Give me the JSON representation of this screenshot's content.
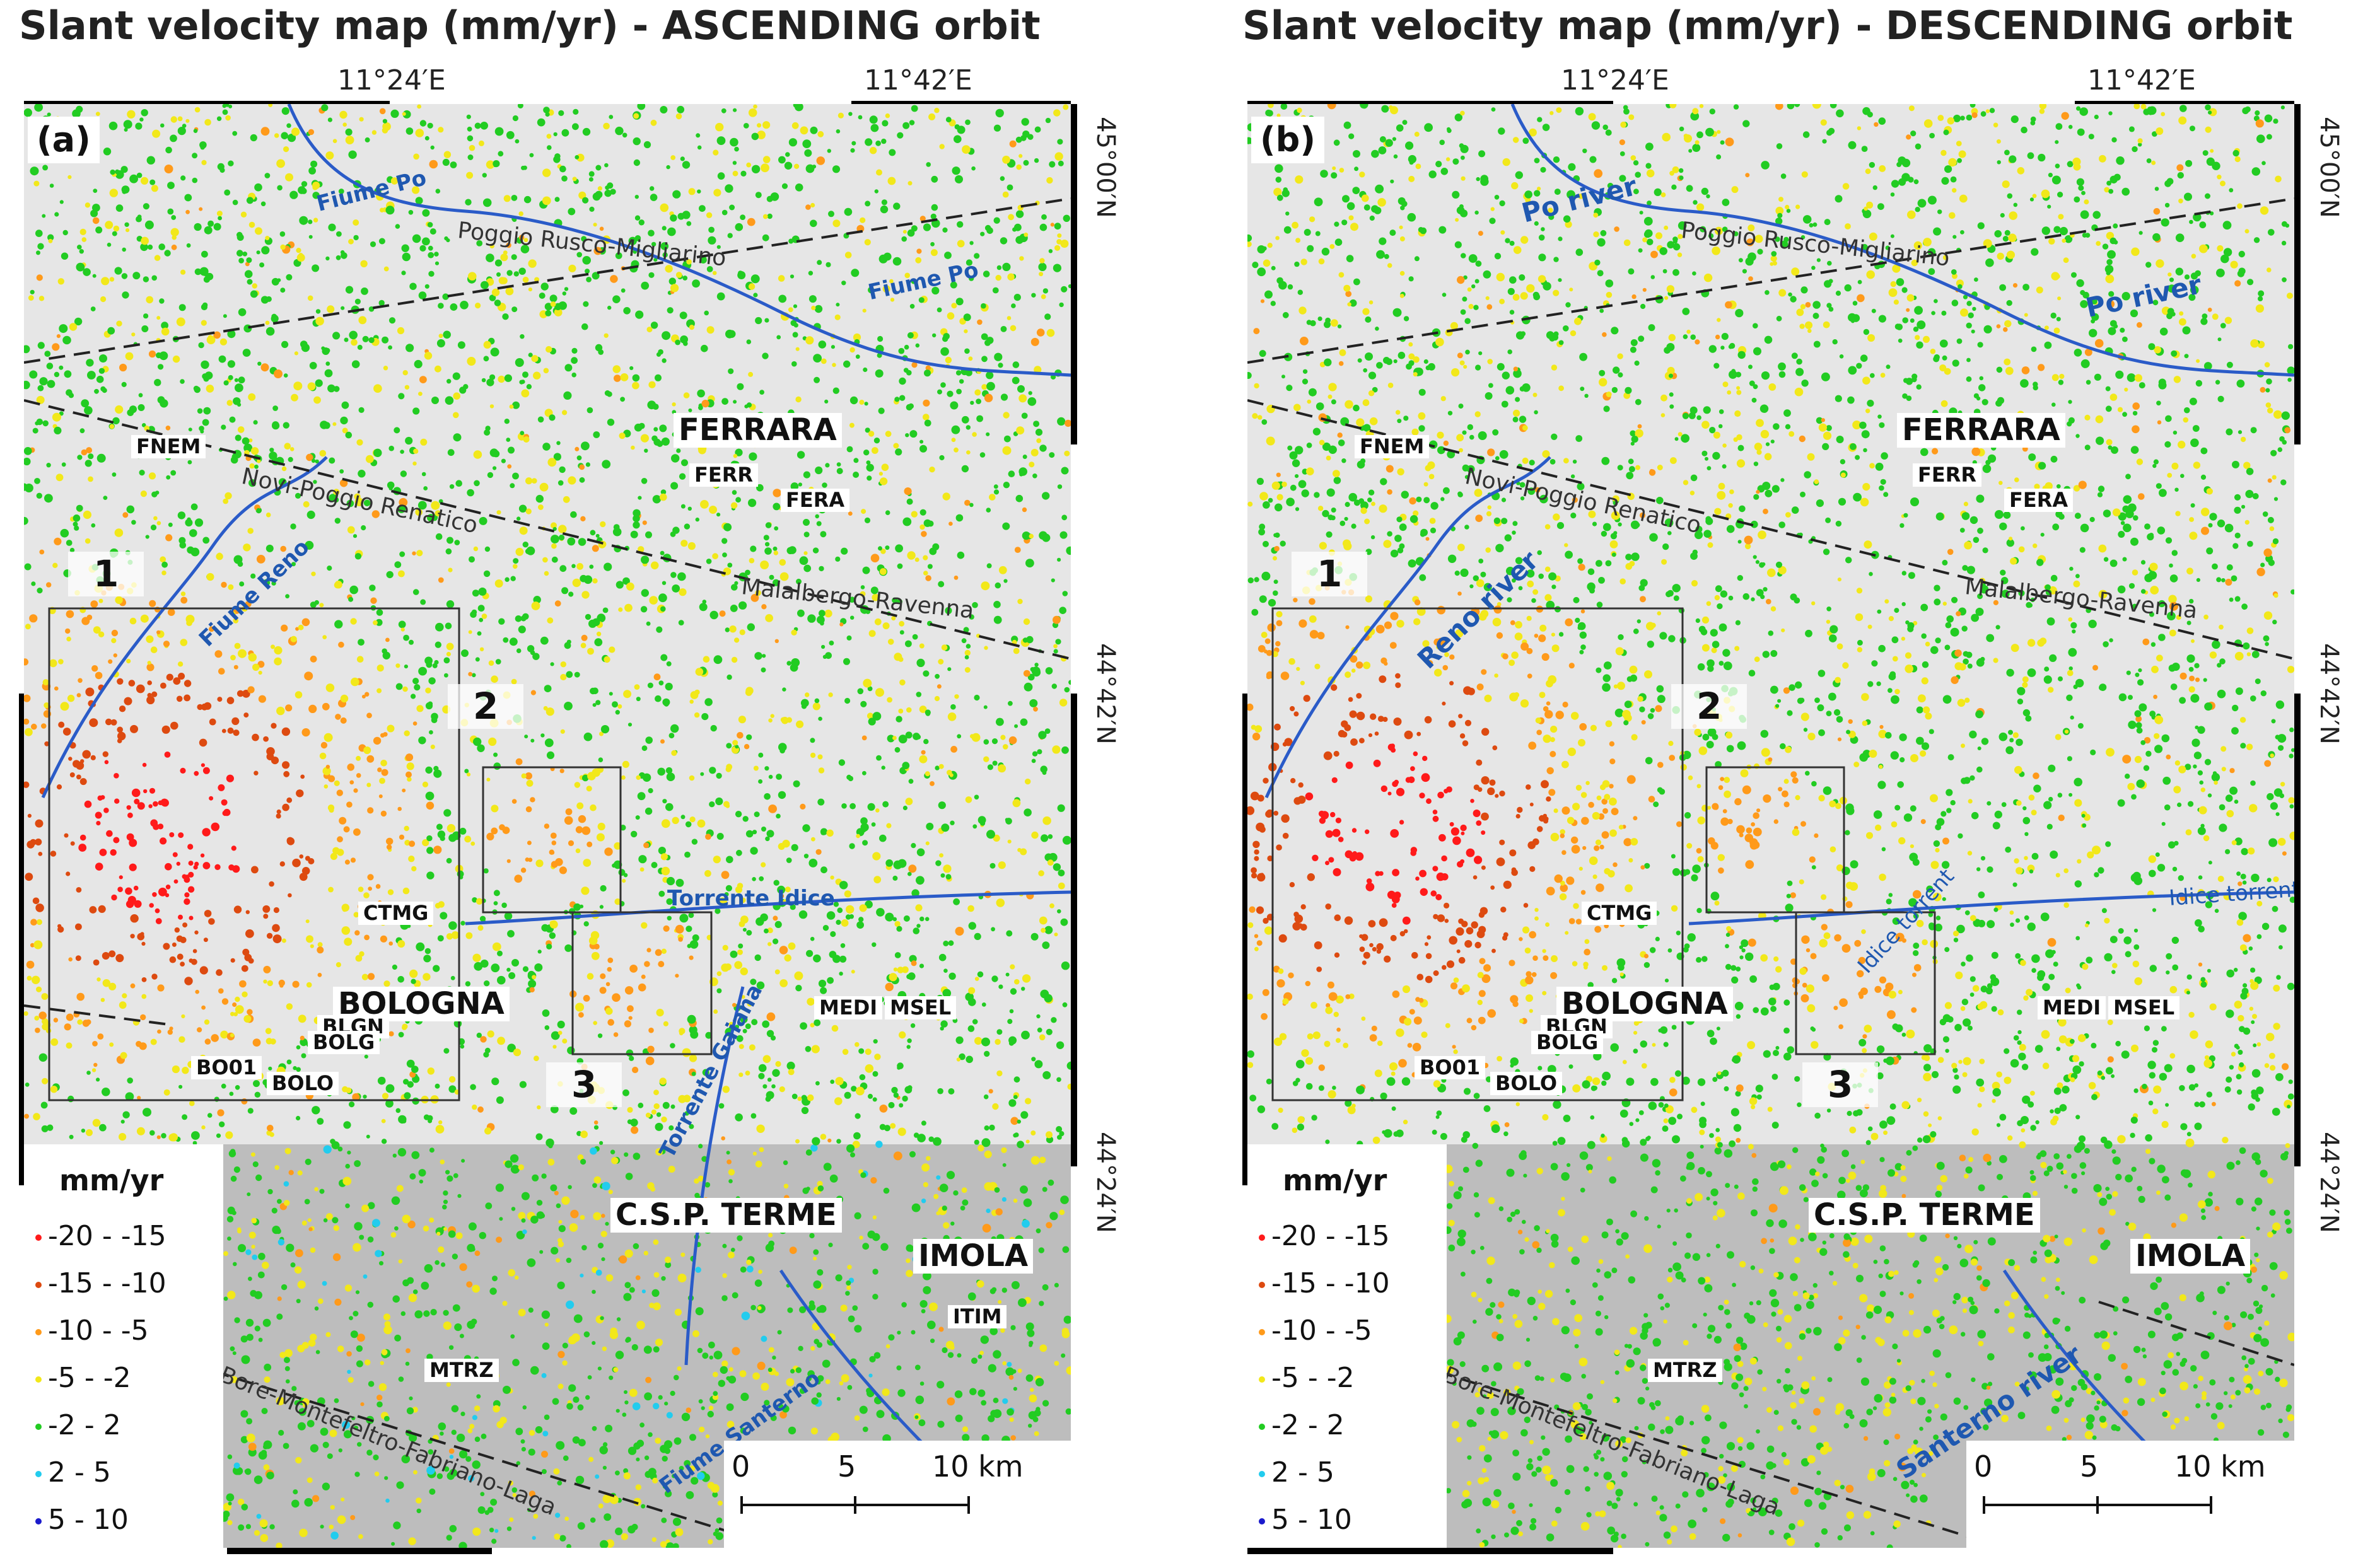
{
  "panels": [
    {
      "title": "Slant velocity map (mm/yr) - ASCENDING  orbit",
      "letter": "(a)",
      "lon_ticks": [
        "11°24′E",
        "11°42′E"
      ],
      "lat_ticks": [
        "45°00′N",
        "44°42′N",
        "44°24′N"
      ],
      "cities": [
        "FERRARA",
        "BOLOGNA",
        "C.S.P. TERME",
        "IMOLA"
      ],
      "stations": [
        "FNEM",
        "FERR",
        "FERA",
        "CTMG",
        "BLGN",
        "BOLG",
        "BO01",
        "BOLO",
        "MEDI",
        "MSEL",
        "ITIM",
        "MTRZ"
      ],
      "structures": [
        "Poggio Rusco-Migliarino",
        "Novi-Poggio Renatico",
        "Malalbergo-Ravenna",
        "Bore-Montefeltro-Fabriano-Laga"
      ],
      "rivers": [
        "Fiume Po",
        "Fiume Po",
        "Fiume Reno",
        "Torrente Idice",
        "Torrente Gaiana",
        "Fiume Santerno"
      ],
      "boxes": [
        "1",
        "2",
        "3"
      ],
      "legend_title": "mm/yr",
      "scale_labels": [
        "0",
        "5",
        "10 km"
      ]
    },
    {
      "title": "Slant velocity map (mm/yr) - DESCENDING  orbit",
      "letter": "(b)",
      "lon_ticks": [
        "11°24′E",
        "11°42′E"
      ],
      "lat_ticks": [
        "45°00′N",
        "44°42′N",
        "44°24′N"
      ],
      "cities": [
        "FERRARA",
        "BOLOGNA",
        "C.S.P. TERME",
        "IMOLA"
      ],
      "stations": [
        "FNEM",
        "FERR",
        "FERA",
        "CTMG",
        "BLGN",
        "BOLG",
        "BO01",
        "BOLO",
        "MEDI",
        "MSEL",
        "MTRZ"
      ],
      "structures": [
        "Poggio Rusco-Migliarino",
        "Novi-Poggio Renatico",
        "Malalbergo-Ravenna",
        "Bore-Montefeltro-Fabriano-Laga"
      ],
      "rivers": [
        "Po river",
        "Po river",
        "Reno river",
        "Idice torrent",
        "Idice torrent",
        "Santerno river"
      ],
      "boxes": [
        "1",
        "2",
        "3"
      ],
      "legend_title": "mm/yr",
      "scale_labels": [
        "0",
        "5",
        "10 km"
      ]
    }
  ],
  "legend_classes": [
    {
      "label": "-20 - -15",
      "color": "#ff1a1a"
    },
    {
      "label": "-15 - -10",
      "color": "#dd4a10"
    },
    {
      "label": "-10 - -5",
      "color": "#ff9a1a"
    },
    {
      "label": "-5 - -2",
      "color": "#f2e81a"
    },
    {
      "label": "-2 - 2",
      "color": "#22cc22"
    },
    {
      "label": "2 - 5",
      "color": "#22ccee"
    },
    {
      "label": "5 - 10",
      "color": "#1a1acc"
    }
  ]
}
